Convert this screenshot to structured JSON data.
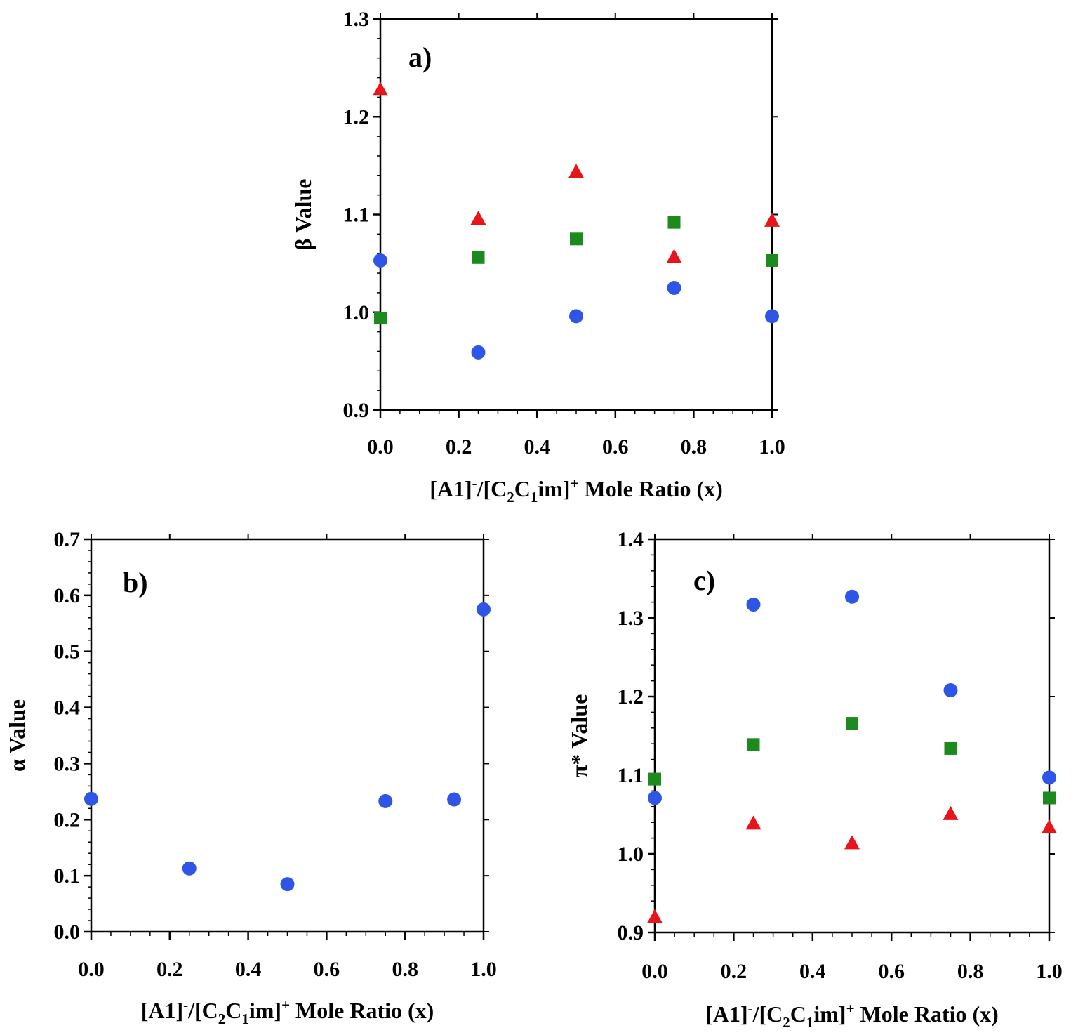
{
  "figure": {
    "colors": {
      "circle": "#2f55e6",
      "square": "#1d8a1d",
      "triangle": "#e8141c"
    }
  },
  "chart_data": [
    {
      "type": "scatter",
      "panel": "a)",
      "xlabel": {
        "pre": "[A1]",
        "sup1": "-",
        "mid1": "/[C",
        "sub1": "2",
        "mid2": "C",
        "sub2": "1",
        "mid3": "im]",
        "sup2": "+",
        "post": " Mole Ratio (x)"
      },
      "ylabel": "β Value",
      "xlim": [
        0,
        1
      ],
      "ylim": [
        0.9,
        1.3
      ],
      "xticks": [
        "0.0",
        "0.2",
        "0.4",
        "0.6",
        "0.8",
        "1.0"
      ],
      "yticks": [
        "0.9",
        "1.0",
        "1.1",
        "1.2",
        "1.3"
      ],
      "series": [
        {
          "marker": "circle",
          "color": "#2f55e6",
          "x": [
            0,
            0.25,
            0.5,
            0.75,
            1.0
          ],
          "y": [
            1.053,
            0.959,
            0.996,
            1.025,
            0.996
          ]
        },
        {
          "marker": "square",
          "color": "#1d8a1d",
          "x": [
            0,
            0.25,
            0.5,
            0.75,
            1.0
          ],
          "y": [
            0.994,
            1.056,
            1.075,
            1.092,
            1.053
          ]
        },
        {
          "marker": "triangle",
          "color": "#e8141c",
          "x": [
            0,
            0.25,
            0.5,
            0.75,
            1.0
          ],
          "y": [
            1.228,
            1.096,
            1.144,
            1.057,
            1.094
          ]
        }
      ]
    },
    {
      "type": "scatter",
      "panel": "b)",
      "xlabel": {
        "pre": "[A1]",
        "sup1": "-",
        "mid1": "/[C",
        "sub1": "2",
        "mid2": "C",
        "sub2": "1",
        "mid3": "im]",
        "sup2": "+",
        "post": " Mole Ratio (x)"
      },
      "ylabel": "α Value",
      "xlim": [
        0,
        1
      ],
      "ylim": [
        0,
        0.7
      ],
      "xticks": [
        "0.0",
        "0.2",
        "0.4",
        "0.6",
        "0.8",
        "1.0"
      ],
      "yticks": [
        "0.0",
        "0.1",
        "0.2",
        "0.3",
        "0.4",
        "0.5",
        "0.6",
        "0.7"
      ],
      "series": [
        {
          "marker": "circle",
          "color": "#2f55e6",
          "x": [
            0,
            0.25,
            0.5,
            0.75,
            0.925,
            1.0
          ],
          "y": [
            0.237,
            0.113,
            0.085,
            0.233,
            0.236,
            0.575
          ]
        }
      ]
    },
    {
      "type": "scatter",
      "panel": "c)",
      "xlabel": {
        "pre": "[A1]",
        "sup1": "-",
        "mid1": "/[C",
        "sub1": "2",
        "mid2": "C",
        "sub2": "1",
        "mid3": "im]",
        "sup2": "+",
        "post": " Mole Ratio (x)"
      },
      "ylabel": "π* Value",
      "xlim": [
        0,
        1
      ],
      "ylim": [
        0.9,
        1.4
      ],
      "xticks": [
        "0.0",
        "0.2",
        "0.4",
        "0.6",
        "0.8",
        "1.0"
      ],
      "yticks": [
        "0.9",
        "1.0",
        "1.1",
        "1.2",
        "1.3",
        "1.4"
      ],
      "series": [
        {
          "marker": "circle",
          "color": "#2f55e6",
          "x": [
            0,
            0.25,
            0.5,
            0.75,
            1.0
          ],
          "y": [
            1.071,
            1.317,
            1.327,
            1.208,
            1.097
          ]
        },
        {
          "marker": "square",
          "color": "#1d8a1d",
          "x": [
            0,
            0.25,
            0.5,
            0.75,
            1.0
          ],
          "y": [
            1.095,
            1.139,
            1.166,
            1.134,
            1.071
          ]
        },
        {
          "marker": "triangle",
          "color": "#e8141c",
          "x": [
            0,
            0.25,
            0.5,
            0.75,
            1.0
          ],
          "y": [
            0.92,
            1.039,
            1.014,
            1.051,
            1.034
          ]
        }
      ]
    }
  ]
}
